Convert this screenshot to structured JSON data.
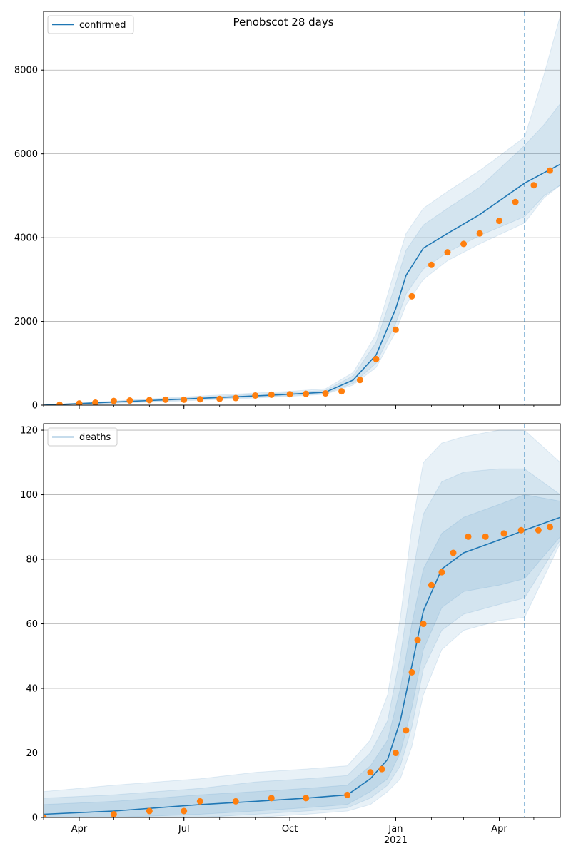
{
  "colors": {
    "model_line": "#1f77b4",
    "observed_points": "#ff7f0e",
    "band": "#1f77b4",
    "vline": "#1f77b4",
    "grid": "#b0b0b0"
  },
  "chart_data": [
    {
      "type": "line",
      "title": "Penobscot 28 days",
      "legend": {
        "label": "confirmed",
        "placement": "top-left"
      },
      "xlabel": "",
      "ylabel": "",
      "x_range": [
        "2020-03-01",
        "2021-05-24"
      ],
      "ylim": [
        0,
        9400
      ],
      "y_ticks": [
        0,
        2000,
        4000,
        6000,
        8000
      ],
      "grid": "y",
      "forecast_start": "2021-04-23",
      "model": {
        "x": [
          "2020-03-01",
          "2020-06-01",
          "2020-09-01",
          "2020-10-01",
          "2020-11-01",
          "2020-11-25",
          "2020-12-15",
          "2021-01-01",
          "2021-01-10",
          "2021-01-25",
          "2021-02-15",
          "2021-03-15",
          "2021-04-23",
          "2021-05-10",
          "2021-05-24"
        ],
        "y": [
          0,
          110,
          220,
          260,
          310,
          600,
          1200,
          2300,
          3100,
          3750,
          4100,
          4550,
          5300,
          5550,
          5750
        ],
        "bands": [
          {
            "lower": [
              0,
              90,
              190,
              230,
              280,
              520,
              1000,
              1950,
              2650,
              3250,
              3650,
              4050,
              4500,
              5000,
              5250
            ],
            "upper": [
              0,
              130,
              260,
              300,
              350,
              700,
              1500,
              2900,
              3700,
              4300,
              4700,
              5200,
              6200,
              6700,
              7200
            ]
          },
          {
            "lower": [
              0,
              70,
              170,
              210,
              260,
              480,
              900,
              1750,
              2400,
              3000,
              3450,
              3850,
              4350,
              4950,
              5250
            ],
            "upper": [
              0,
              150,
              290,
              330,
              390,
              780,
              1700,
              3300,
              4100,
              4700,
              5100,
              5600,
              6400,
              7900,
              9300
            ]
          }
        ]
      },
      "observed": {
        "x": [
          "2020-03-15",
          "2020-04-01",
          "2020-04-15",
          "2020-05-01",
          "2020-05-15",
          "2020-06-01",
          "2020-06-15",
          "2020-07-01",
          "2020-07-15",
          "2020-08-01",
          "2020-08-15",
          "2020-09-01",
          "2020-09-15",
          "2020-10-01",
          "2020-10-15",
          "2020-11-01",
          "2020-11-15",
          "2020-12-01",
          "2020-12-15",
          "2021-01-01",
          "2021-01-15",
          "2021-02-01",
          "2021-02-15",
          "2021-03-01",
          "2021-03-15",
          "2021-04-01",
          "2021-04-15",
          "2021-05-01",
          "2021-05-15"
        ],
        "y": [
          10,
          40,
          60,
          100,
          110,
          120,
          130,
          130,
          140,
          150,
          170,
          230,
          250,
          260,
          270,
          280,
          330,
          600,
          1100,
          1800,
          2600,
          3350,
          3650,
          3850,
          4100,
          4400,
          4850,
          5250,
          5600
        ]
      }
    },
    {
      "type": "line",
      "title": "",
      "legend": {
        "label": "deaths",
        "placement": "top-left"
      },
      "xlabel": "",
      "ylabel": "",
      "x_range": [
        "2020-03-01",
        "2021-05-24"
      ],
      "x_ticks": [
        {
          "date": "2020-04-01",
          "label": "Apr"
        },
        {
          "date": "2020-07-01",
          "label": "Jul"
        },
        {
          "date": "2020-10-01",
          "label": "Oct"
        },
        {
          "date": "2021-01-01",
          "label": "Jan"
        },
        {
          "date": "2021-04-01",
          "label": "Apr"
        }
      ],
      "x_year_label": {
        "date": "2021-01-01",
        "label": "2021"
      },
      "ylim": [
        0,
        122
      ],
      "y_ticks": [
        0,
        20,
        40,
        60,
        80,
        100,
        120
      ],
      "grid": "y",
      "forecast_start": "2021-04-23",
      "model": {
        "x": [
          "2020-03-01",
          "2020-05-01",
          "2020-07-15",
          "2020-09-01",
          "2020-10-15",
          "2020-11-20",
          "2020-12-10",
          "2020-12-25",
          "2021-01-05",
          "2021-01-15",
          "2021-01-25",
          "2021-02-10",
          "2021-03-01",
          "2021-04-01",
          "2021-04-23",
          "2021-05-24"
        ],
        "y": [
          1,
          2,
          4,
          5,
          6,
          7,
          12,
          18,
          30,
          47,
          64,
          77,
          82,
          86,
          89,
          93
        ],
        "bands": [
          {
            "lower": [
              0,
              0,
              1,
              2,
              3,
              4,
              8,
              12,
              20,
              34,
              52,
              65,
              70,
              72,
              74,
              87
            ],
            "upper": [
              4,
              5,
              7,
              8,
              9,
              10,
              16,
              24,
              40,
              60,
              77,
              88,
              93,
              97,
              100,
              98
            ]
          },
          {
            "lower": [
              0,
              0,
              0,
              1,
              2,
              3,
              6,
              10,
              16,
              28,
              46,
              58,
              63,
              66,
              68,
              86
            ],
            "upper": [
              6,
              7,
              9,
              11,
              12,
              13,
              20,
              30,
              50,
              74,
              94,
              104,
              107,
              108,
              108,
              100
            ]
          },
          {
            "lower": [
              0,
              0,
              0,
              0,
              1,
              2,
              4,
              8,
              12,
              22,
              38,
              52,
              58,
              61,
              62,
              85
            ],
            "upper": [
              8,
              10,
              12,
              14,
              15,
              16,
              24,
              38,
              62,
              90,
              110,
              116,
              118,
              120,
              120,
              110
            ]
          }
        ]
      },
      "observed": {
        "x": [
          "2020-03-01",
          "2020-05-01",
          "2020-06-01",
          "2020-07-01",
          "2020-07-15",
          "2020-08-15",
          "2020-09-15",
          "2020-10-15",
          "2020-11-20",
          "2020-12-10",
          "2020-12-20",
          "2021-01-01",
          "2021-01-10",
          "2021-01-15",
          "2021-01-20",
          "2021-01-25",
          "2021-02-01",
          "2021-02-10",
          "2021-02-20",
          "2021-03-05",
          "2021-03-20",
          "2021-04-05",
          "2021-04-20",
          "2021-05-05",
          "2021-05-15"
        ],
        "y": [
          0,
          1,
          2,
          2,
          5,
          5,
          6,
          6,
          7,
          14,
          15,
          20,
          27,
          45,
          55,
          60,
          72,
          76,
          82,
          87,
          87,
          88,
          89,
          89,
          90
        ]
      }
    }
  ]
}
